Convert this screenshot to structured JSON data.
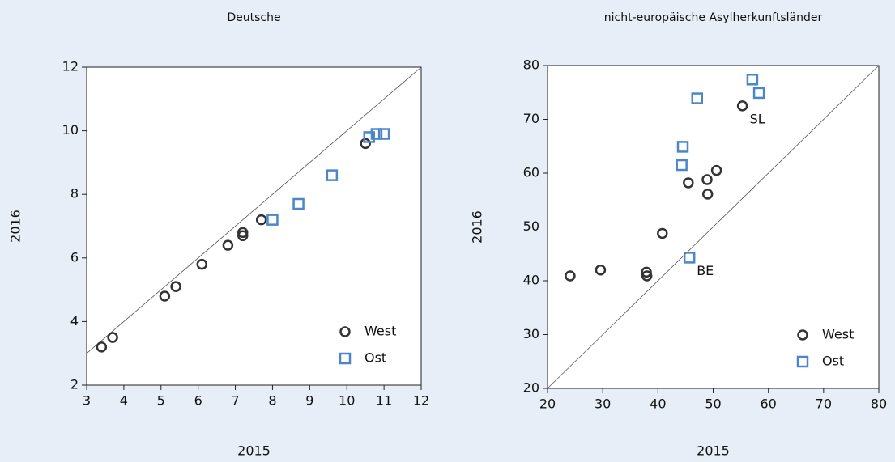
{
  "chart_data": [
    {
      "type": "scatter",
      "title": "Deutsche",
      "xlabel": "2015",
      "ylabel": "2016",
      "xlim": [
        3,
        12
      ],
      "ylim": [
        2,
        12
      ],
      "xticks": [
        3,
        4,
        5,
        6,
        7,
        8,
        9,
        10,
        11,
        12
      ],
      "yticks": [
        2,
        4,
        6,
        8,
        10,
        12
      ],
      "diagonal": true,
      "legend": "lower right",
      "series": [
        {
          "name": "West",
          "color": "#333333",
          "marker": "circle",
          "x": [
            3.4,
            3.7,
            5.1,
            5.4,
            6.1,
            6.8,
            7.2,
            7.2,
            7.7,
            10.5
          ],
          "y": [
            3.2,
            3.5,
            4.8,
            5.1,
            5.8,
            6.4,
            6.8,
            6.7,
            7.2,
            9.6
          ]
        },
        {
          "name": "Ost",
          "color": "#4a86c8",
          "marker": "square",
          "x": [
            8.0,
            8.7,
            9.6,
            10.6,
            10.8,
            11.0
          ],
          "y": [
            7.2,
            7.7,
            8.6,
            9.8,
            9.9,
            9.9
          ]
        }
      ]
    },
    {
      "type": "scatter",
      "title": "nicht-europäische Asylherkunftsländer",
      "xlabel": "2015",
      "ylabel": "2016",
      "xlim": [
        20,
        80
      ],
      "ylim": [
        20,
        80
      ],
      "xticks": [
        20,
        30,
        40,
        50,
        60,
        70,
        80
      ],
      "yticks": [
        20,
        30,
        40,
        50,
        60,
        70,
        80
      ],
      "diagonal": true,
      "legend": "lower right",
      "series": [
        {
          "name": "West",
          "color": "#333333",
          "marker": "circle",
          "x": [
            24.1,
            29.6,
            37.9,
            38.0,
            40.8,
            45.5,
            48.9,
            49.0,
            50.6,
            55.3
          ],
          "y": [
            40.9,
            42.0,
            41.6,
            40.9,
            48.8,
            58.2,
            58.8,
            56.1,
            60.5,
            72.5
          ],
          "labels": [
            null,
            null,
            null,
            null,
            null,
            null,
            null,
            null,
            null,
            "SL"
          ]
        },
        {
          "name": "Ost",
          "color": "#4a86c8",
          "marker": "square",
          "x": [
            45.7,
            44.3,
            44.5,
            47.1,
            57.1,
            58.3
          ],
          "y": [
            44.3,
            61.5,
            64.9,
            73.9,
            77.4,
            74.9
          ],
          "labels": [
            "BE",
            null,
            null,
            null,
            null,
            null
          ]
        }
      ]
    }
  ]
}
